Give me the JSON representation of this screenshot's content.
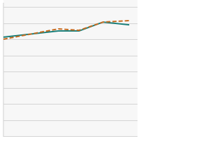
{
  "chart_data": {
    "type": "line",
    "x": [
      0,
      80,
      110,
      145,
      183
    ],
    "series": [
      {
        "color": "#1a7f7a",
        "dash": false,
        "values": [
          6.13,
          6.51,
          6.51,
          7.06,
          6.89
        ]
      },
      {
        "color": "#c46a1e",
        "dash": true,
        "values": [
          6.0,
          6.64,
          6.55,
          7.06,
          7.15
        ]
      }
    ],
    "xlim": [
      0,
      183
    ],
    "ylim": [
      0,
      8
    ],
    "yticks": [
      0,
      1,
      2,
      3,
      4,
      5,
      6,
      7,
      8
    ],
    "grid": true
  }
}
